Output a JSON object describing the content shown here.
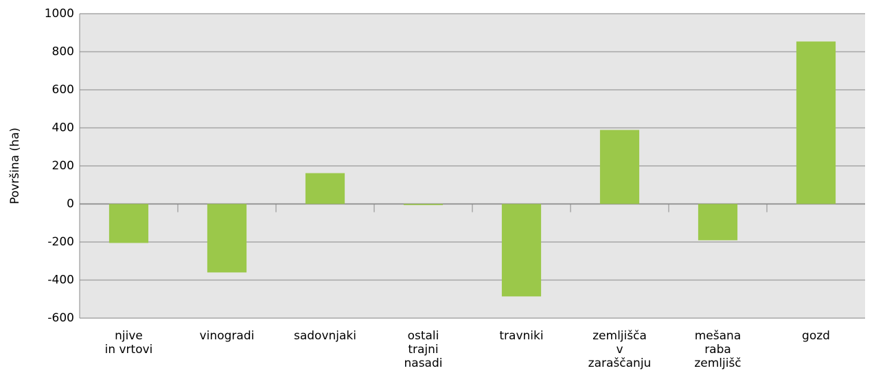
{
  "chart_data": {
    "type": "bar",
    "y_label": "Površina (ha)",
    "categories": [
      "njive\nin vrtovi",
      "vinogradi",
      "sadovnjaki",
      "ostali\ntrajni\nnasadi",
      "travniki",
      "zemljišča\nv\nzaraščanju",
      "mešana\nraba\nzemljišč",
      "gozd"
    ],
    "values": [
      -205,
      -360,
      162,
      -6,
      -486,
      389,
      -191,
      854
    ],
    "color": "#9bc84a",
    "ylim": [
      -600,
      1000
    ],
    "yticks": [
      -600,
      -400,
      -200,
      0,
      200,
      400,
      600,
      800,
      1000
    ],
    "grid": true
  }
}
